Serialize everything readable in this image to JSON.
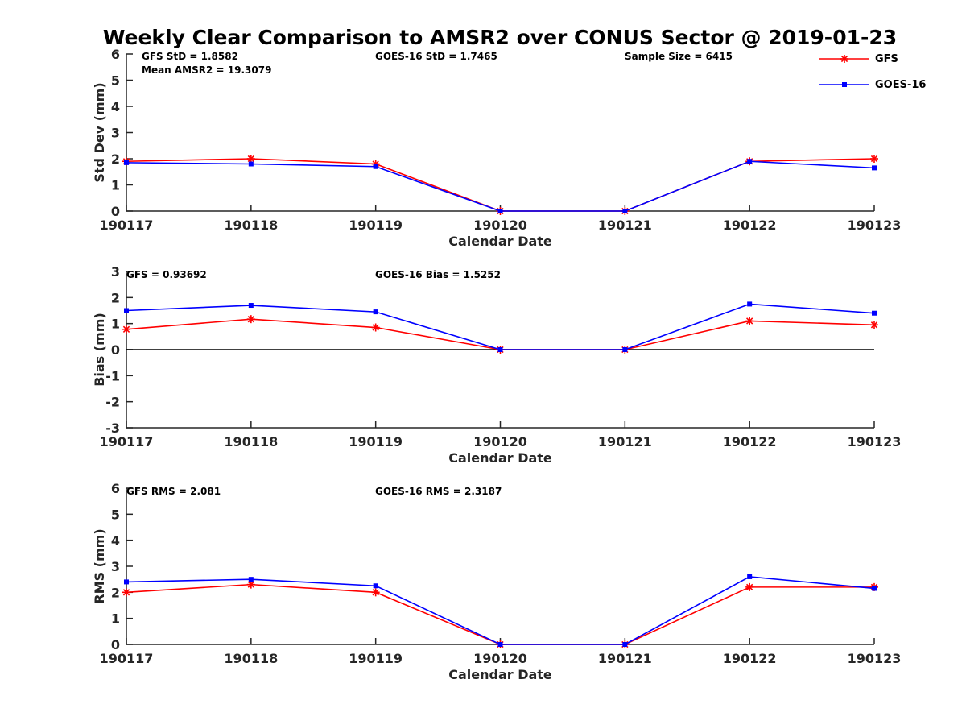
{
  "title": "Weekly Clear Comparison to AMSR2 over CONUS Sector @ 2019-01-23",
  "legend": {
    "placement": "top-right",
    "entries": [
      {
        "label": "GFS",
        "color": "#ff0000",
        "marker": "asterisk"
      },
      {
        "label": "GOES-16",
        "color": "#0000ff",
        "marker": "square"
      }
    ]
  },
  "chart_data": [
    {
      "type": "line",
      "xlabel": "Calendar Date",
      "ylabel": "Std Dev (mm)",
      "ylim": [
        0,
        6
      ],
      "yticks": [
        "0",
        "1",
        "2",
        "3",
        "4",
        "5",
        "6"
      ],
      "categories": [
        "190117",
        "190118",
        "190119",
        "190120",
        "190121",
        "190122",
        "190123"
      ],
      "annotations": [
        "GFS StD = 1.8582",
        "Mean AMSR2 = 19.3079",
        "GOES-16 StD = 1.7465",
        "Sample Size = 6415"
      ],
      "series": [
        {
          "name": "GFS",
          "color": "#ff0000",
          "values": [
            1.9,
            2.0,
            1.8,
            0.0,
            0.0,
            1.9,
            2.0
          ]
        },
        {
          "name": "GOES-16",
          "color": "#0000ff",
          "values": [
            1.85,
            1.8,
            1.7,
            0.0,
            0.0,
            1.9,
            1.65
          ]
        }
      ]
    },
    {
      "type": "line",
      "xlabel": "Calendar Date",
      "ylabel": "Bias (mm)",
      "ylim": [
        -3,
        3
      ],
      "yticks": [
        "-3",
        "-2",
        "-1",
        "0",
        "1",
        "2",
        "3"
      ],
      "zero_line": true,
      "categories": [
        "190117",
        "190118",
        "190119",
        "190120",
        "190121",
        "190122",
        "190123"
      ],
      "annotations": [
        "GFS = 0.93692",
        "GOES-16 Bias  = 1.5252"
      ],
      "series": [
        {
          "name": "GFS",
          "color": "#ff0000",
          "values": [
            0.78,
            1.17,
            0.85,
            0.0,
            0.0,
            1.1,
            0.95
          ]
        },
        {
          "name": "GOES-16",
          "color": "#0000ff",
          "values": [
            1.5,
            1.7,
            1.45,
            0.0,
            0.0,
            1.75,
            1.4
          ]
        }
      ]
    },
    {
      "type": "line",
      "xlabel": "Calendar Date",
      "ylabel": "RMS (mm)",
      "ylim": [
        0,
        6
      ],
      "yticks": [
        "0",
        "1",
        "2",
        "3",
        "4",
        "5",
        "6"
      ],
      "categories": [
        "190117",
        "190118",
        "190119",
        "190120",
        "190121",
        "190122",
        "190123"
      ],
      "annotations": [
        "GFS RMS = 2.081",
        "GOES-16 RMS = 2.3187"
      ],
      "series": [
        {
          "name": "GFS",
          "color": "#ff0000",
          "values": [
            2.0,
            2.3,
            2.0,
            0.0,
            0.0,
            2.2,
            2.2
          ]
        },
        {
          "name": "GOES-16",
          "color": "#0000ff",
          "values": [
            2.4,
            2.5,
            2.25,
            0.0,
            0.0,
            2.6,
            2.15
          ]
        }
      ]
    }
  ]
}
